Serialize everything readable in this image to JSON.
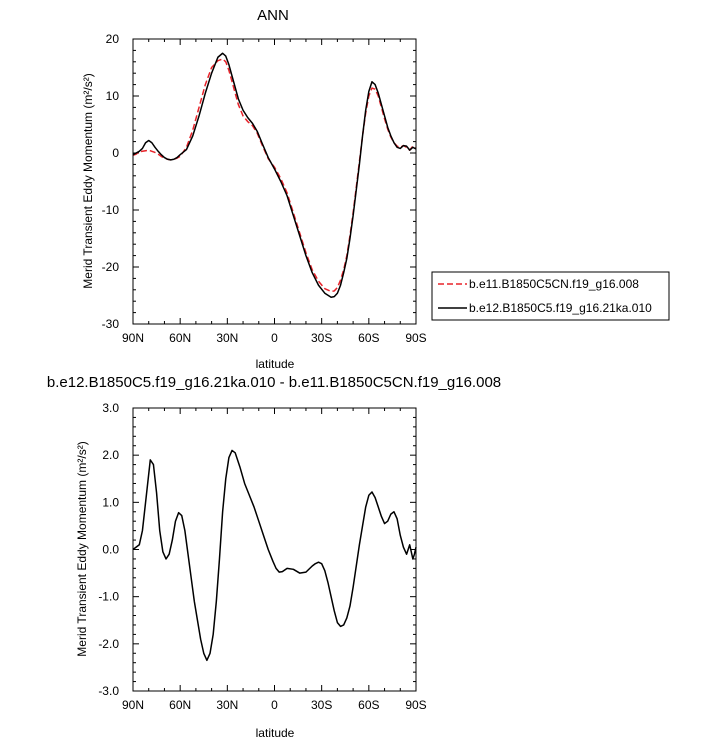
{
  "chart_data": [
    {
      "type": "line",
      "title": "ANN",
      "xlabel": "latitude",
      "ylabel": "Merid Transient Eddy Momentum (m²/s²)",
      "x_axis_direction": "90N to 90S",
      "xlim": [
        90,
        -90
      ],
      "ylim": [
        -30,
        20
      ],
      "x_ticks": [
        90,
        60,
        30,
        0,
        -30,
        -60,
        -90
      ],
      "x_tick_labels": [
        "90N",
        "60N",
        "30N",
        "0",
        "30S",
        "60S",
        "90S"
      ],
      "y_ticks": [
        -30,
        -20,
        -10,
        0,
        10,
        20
      ],
      "y_tick_labels": [
        "-30",
        "-20",
        "-10",
        "0",
        "10",
        "20"
      ],
      "grid": false,
      "legend_position": "right",
      "series": [
        {
          "name": "b.e11.B1850C5CN.f19_g16.008",
          "color": "#e8232a",
          "dash": "dashed",
          "x": [
            90,
            88,
            86,
            84,
            82,
            80,
            78,
            76,
            74,
            72,
            70,
            68,
            66,
            64,
            62,
            60,
            56,
            52,
            48,
            44,
            40,
            36,
            33,
            31,
            29,
            26,
            23,
            20,
            17,
            14,
            11,
            8,
            4,
            0,
            -4,
            -8,
            -12,
            -16,
            -20,
            -24,
            -28,
            -32,
            -36,
            -38,
            -40,
            -42,
            -44,
            -46,
            -48,
            -50,
            -52,
            -54,
            -56,
            -58,
            -60,
            -62,
            -64,
            -66,
            -68,
            -70,
            -72,
            -74,
            -76,
            -78,
            -80,
            -82,
            -84,
            -86,
            -88,
            -90
          ],
          "y": [
            -0.4,
            -0.2,
            0.2,
            0.3,
            0.4,
            0.5,
            0.3,
            0.1,
            -0.2,
            -0.6,
            -0.9,
            -1.1,
            -1.2,
            -1.1,
            -0.9,
            -0.6,
            1.0,
            4.0,
            8.0,
            12.0,
            15.0,
            16.2,
            16.5,
            16.0,
            14.5,
            11.5,
            8.5,
            6.5,
            5.5,
            4.8,
            3.5,
            1.5,
            -1.0,
            -2.5,
            -4.5,
            -7.0,
            -10.5,
            -14.0,
            -17.5,
            -20.5,
            -22.5,
            -23.8,
            -24.3,
            -24.2,
            -23.6,
            -22.3,
            -20.5,
            -18.0,
            -14.5,
            -10.5,
            -6.0,
            -1.5,
            3.0,
            7.0,
            10.0,
            11.4,
            11.2,
            10.0,
            8.0,
            6.0,
            4.2,
            2.8,
            1.8,
            1.2,
            1.0,
            1.3,
            1.0,
            0.5,
            1.2,
            0.9
          ]
        },
        {
          "name": "b.e12.B1850C5.f19_g16.21ka.010",
          "color": "#000000",
          "dash": "solid",
          "x": [
            90,
            88,
            86,
            84,
            82,
            80,
            78,
            76,
            74,
            72,
            70,
            68,
            66,
            64,
            62,
            60,
            56,
            52,
            48,
            44,
            40,
            36,
            33,
            31,
            29,
            26,
            23,
            20,
            17,
            14,
            11,
            8,
            4,
            0,
            -4,
            -8,
            -12,
            -16,
            -20,
            -24,
            -28,
            -32,
            -36,
            -38,
            -40,
            -42,
            -44,
            -46,
            -48,
            -50,
            -52,
            -54,
            -56,
            -58,
            -60,
            -62,
            -64,
            -66,
            -68,
            -70,
            -72,
            -74,
            -76,
            -78,
            -80,
            -82,
            -84,
            -86,
            -88,
            -90
          ],
          "y": [
            -0.3,
            0.0,
            0.3,
            0.8,
            1.8,
            2.2,
            1.8,
            1.0,
            0.3,
            -0.3,
            -0.8,
            -1.1,
            -1.2,
            -1.1,
            -0.8,
            -0.3,
            0.6,
            3.0,
            6.5,
            10.5,
            14.0,
            16.8,
            17.5,
            17.0,
            15.5,
            12.5,
            9.5,
            7.5,
            6.2,
            5.2,
            3.8,
            1.8,
            -0.8,
            -2.8,
            -5.0,
            -7.5,
            -11.0,
            -14.5,
            -18.0,
            -21.0,
            -23.2,
            -24.6,
            -25.3,
            -25.2,
            -24.6,
            -23.2,
            -21.0,
            -18.5,
            -15.0,
            -11.0,
            -6.5,
            -2.0,
            3.0,
            7.5,
            10.8,
            12.5,
            12.0,
            10.5,
            8.5,
            6.5,
            4.5,
            3.0,
            1.8,
            1.0,
            0.8,
            1.3,
            1.2,
            0.5,
            1.0,
            0.7
          ]
        }
      ]
    },
    {
      "type": "line",
      "title": "b.e12.B1850C5.f19_g16.21ka.010 - b.e11.B1850C5CN.f19_g16.008",
      "xlabel": "latitude",
      "ylabel": "Merid Transient Eddy Momentum (m²/s²)",
      "x_axis_direction": "90N to 90S",
      "xlim": [
        90,
        -90
      ],
      "ylim": [
        -3.0,
        3.0
      ],
      "x_ticks": [
        90,
        60,
        30,
        0,
        -30,
        -60,
        -90
      ],
      "x_tick_labels": [
        "90N",
        "60N",
        "30N",
        "0",
        "30S",
        "60S",
        "90S"
      ],
      "y_ticks": [
        -3,
        -2,
        -1,
        0,
        1,
        2,
        3
      ],
      "y_tick_labels": [
        "-3.0",
        "-2.0",
        "-1.0",
        "0.0",
        "1.0",
        "2.0",
        "3.0"
      ],
      "grid": false,
      "series": [
        {
          "color": "#000000",
          "dash": "solid",
          "x": [
            90,
            88,
            86,
            84,
            82,
            80,
            79,
            77,
            75,
            73,
            71,
            69,
            67,
            65,
            63,
            61,
            59,
            57,
            55,
            53,
            51,
            49,
            47,
            45,
            43,
            41,
            39,
            37,
            35,
            33,
            31,
            29,
            27,
            25,
            22,
            19,
            16,
            13,
            10,
            7,
            4,
            1,
            -1,
            -3,
            -5,
            -8,
            -12,
            -16,
            -20,
            -24,
            -26,
            -28,
            -30,
            -32,
            -34,
            -36,
            -38,
            -40,
            -42,
            -44,
            -46,
            -48,
            -50,
            -52,
            -54,
            -56,
            -58,
            -60,
            -62,
            -64,
            -66,
            -68,
            -70,
            -72,
            -74,
            -76,
            -78,
            -80,
            -82,
            -84,
            -86,
            -87,
            -88,
            -89,
            -90
          ],
          "y": [
            0.0,
            0.05,
            0.1,
            0.4,
            1.0,
            1.6,
            1.9,
            1.8,
            1.2,
            0.4,
            -0.05,
            -0.2,
            -0.1,
            0.2,
            0.6,
            0.78,
            0.72,
            0.4,
            -0.1,
            -0.6,
            -1.1,
            -1.5,
            -1.9,
            -2.2,
            -2.35,
            -2.2,
            -1.8,
            -1.1,
            -0.2,
            0.8,
            1.5,
            1.95,
            2.1,
            2.05,
            1.75,
            1.4,
            1.15,
            0.9,
            0.6,
            0.3,
            0.0,
            -0.25,
            -0.4,
            -0.48,
            -0.47,
            -0.4,
            -0.42,
            -0.5,
            -0.48,
            -0.35,
            -0.3,
            -0.27,
            -0.3,
            -0.45,
            -0.7,
            -1.0,
            -1.3,
            -1.55,
            -1.63,
            -1.6,
            -1.45,
            -1.2,
            -0.8,
            -0.35,
            0.1,
            0.5,
            0.9,
            1.15,
            1.22,
            1.1,
            0.9,
            0.7,
            0.55,
            0.6,
            0.75,
            0.8,
            0.65,
            0.3,
            0.05,
            -0.1,
            0.1,
            -0.05,
            -0.2,
            -0.1,
            0.05
          ]
        }
      ]
    }
  ]
}
